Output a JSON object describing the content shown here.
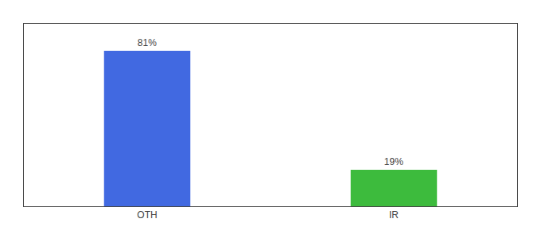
{
  "chart_data": {
    "type": "bar",
    "categories": [
      "OTH",
      "IR"
    ],
    "values": [
      81,
      19
    ],
    "value_labels": [
      "81%",
      "19%"
    ],
    "data_labels": true,
    "colors": [
      "#4169e1",
      "#3dbb3d"
    ],
    "ylim": [
      0,
      95
    ],
    "grid": false,
    "tick_labels": "x"
  }
}
